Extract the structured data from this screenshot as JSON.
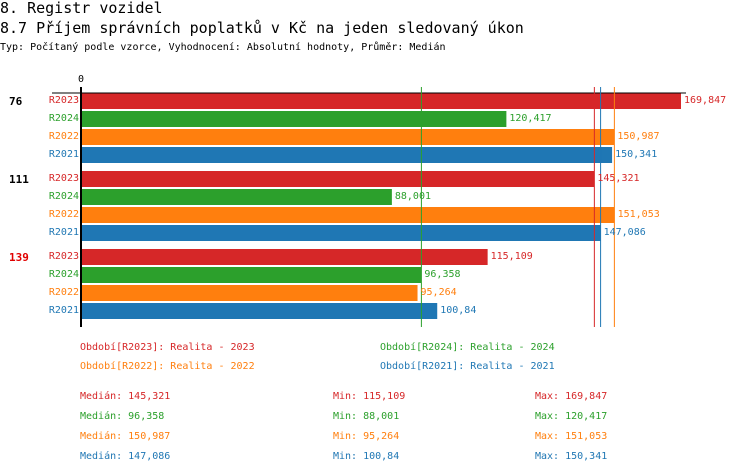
{
  "header": {
    "title": "8. Registr vozidel",
    "subtitle": "8.7 Příjem správních poplatků v Kč na jeden sledovaný úkon",
    "meta": "Typ: Počítaný podle vzorce, Vyhodnocení: Absolutní hodnoty, Průměr: Medián"
  },
  "chart_data": {
    "type": "bar",
    "orientation": "horizontal",
    "xmin_label": "0",
    "xlim": [
      0,
      169847
    ],
    "groups": [
      {
        "label": "76",
        "color": "#000000",
        "bars": [
          {
            "series": "R2023",
            "value": 169847,
            "label": "169,847"
          },
          {
            "series": "R2024",
            "value": 120417,
            "label": "120,417"
          },
          {
            "series": "R2022",
            "value": 150987,
            "label": "150,987"
          },
          {
            "series": "R2021",
            "value": 150341,
            "label": "150,341"
          }
        ]
      },
      {
        "label": "111",
        "color": "#000000",
        "bars": [
          {
            "series": "R2023",
            "value": 145321,
            "label": "145,321"
          },
          {
            "series": "R2024",
            "value": 88001,
            "label": "88,001"
          },
          {
            "series": "R2022",
            "value": 151053,
            "label": "151,053"
          },
          {
            "series": "R2021",
            "value": 147086,
            "label": "147,086"
          }
        ]
      },
      {
        "label": "139",
        "color": "#e00000",
        "bars": [
          {
            "series": "R2023",
            "value": 115109,
            "label": "115,109"
          },
          {
            "series": "R2024",
            "value": 96358,
            "label": "96,358"
          },
          {
            "series": "R2022",
            "value": 95264,
            "label": "95,264"
          },
          {
            "series": "R2021",
            "value": 100840,
            "label": "100,84"
          }
        ]
      }
    ],
    "series_colors": {
      "R2023": "#d62728",
      "R2024": "#2ca02c",
      "R2022": "#ff7f0e",
      "R2021": "#1f77b4"
    },
    "medians": {
      "R2023": 145321,
      "R2024": 96358,
      "R2022": 150987,
      "R2021": 147086
    },
    "legend": [
      {
        "series": "R2023",
        "text": "Období[R2023]: Realita - 2023"
      },
      {
        "series": "R2024",
        "text": "Období[R2024]: Realita - 2024"
      },
      {
        "series": "R2022",
        "text": "Období[R2022]: Realita - 2022"
      },
      {
        "series": "R2021",
        "text": "Období[R2021]: Realita - 2021"
      }
    ],
    "stats": [
      {
        "series": "R2023",
        "median": "Medián: 145,321",
        "min": "Min: 115,109",
        "max": "Max: 169,847"
      },
      {
        "series": "R2024",
        "median": "Medián: 96,358",
        "min": "Min: 88,001",
        "max": "Max: 120,417"
      },
      {
        "series": "R2022",
        "median": "Medián: 150,987",
        "min": "Min: 95,264",
        "max": "Max: 151,053"
      },
      {
        "series": "R2021",
        "median": "Medián: 147,086",
        "min": "Min: 100,84",
        "max": "Max: 150,341"
      }
    ]
  }
}
